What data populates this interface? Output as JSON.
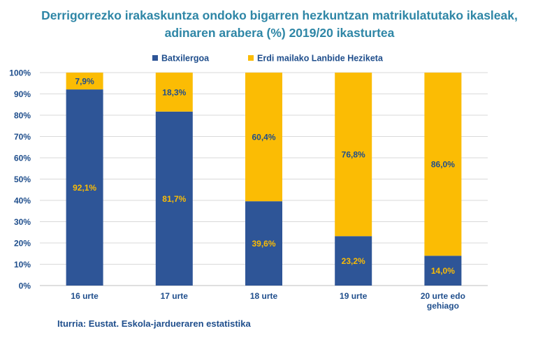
{
  "title_line1": "Derrigorrezko irakaskuntza ondoko bigarren hezkuntzan matrikulatutako ikasleak,",
  "title_line2": "adinaren arabera (%)  2019/20 ikasturtea",
  "source": "Iturria: Eustat. Eskola-jardueraren estatistika",
  "colors": {
    "batxilergoa": "#2e5597",
    "lanbide": "#fbbc04",
    "axis_text": "#1f4e8c",
    "grid": "#d9d9d9"
  },
  "chart_data": {
    "type": "bar",
    "stacked": true,
    "categories": [
      [
        "16 urte"
      ],
      [
        "17 urte"
      ],
      [
        "18 urte"
      ],
      [
        "19 urte"
      ],
      [
        "20 urte edo",
        "gehiago"
      ]
    ],
    "series": [
      {
        "name": "Batxilergoa",
        "values": [
          92.1,
          81.7,
          39.6,
          23.2,
          14.0
        ],
        "labels": [
          "92,1%",
          "81,7%",
          "39,6%",
          "23,2%",
          "14,0%"
        ]
      },
      {
        "name": "Erdi mailako Lanbide Heziketa",
        "values": [
          7.9,
          18.3,
          60.4,
          76.8,
          86.0
        ],
        "labels": [
          "7,9%",
          "18,3%",
          "60,4%",
          "76,8%",
          "86,0%"
        ]
      }
    ],
    "yticks": [
      "0%",
      "10%",
      "20%",
      "30%",
      "40%",
      "50%",
      "60%",
      "70%",
      "80%",
      "90%",
      "100%"
    ],
    "ylim": [
      0,
      100
    ],
    "grid": true,
    "legend": "top"
  }
}
